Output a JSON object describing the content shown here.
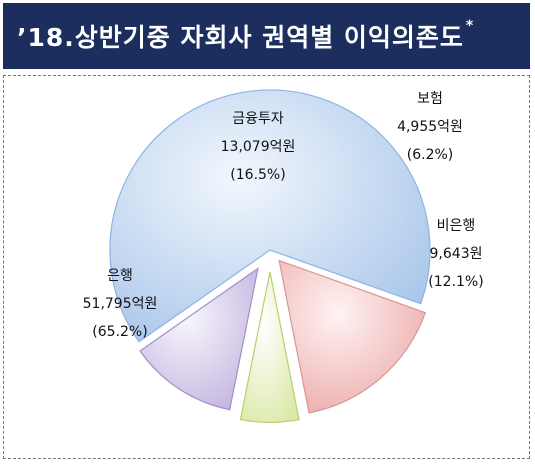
{
  "title": "’18.상반기중 자회사 권역별 이익의존도",
  "title_mark": "*",
  "chart_data": {
    "type": "pie",
    "unit": "억원",
    "slices": [
      {
        "name": "은행",
        "value": 51795,
        "value_text": "51,795억원",
        "pct_text": "(65.2%)",
        "color": "#c6d9f1",
        "edge": "#8eb4e3"
      },
      {
        "name": "금융투자",
        "value": 13079,
        "value_text": "13,079억원",
        "pct_text": "(16.5%)",
        "color": "#f4c6c6",
        "edge": "#d99694"
      },
      {
        "name": "보험",
        "value": 4955,
        "value_text": "4,955억원",
        "pct_text": "(6.2%)",
        "color": "#ebf3c8",
        "edge": "#b9cf6f"
      },
      {
        "name": "비은행",
        "value": 9643,
        "value_text": "9,643원",
        "pct_text": "(12.1%)",
        "color": "#e0d8ef",
        "edge": "#9f8fc9"
      }
    ]
  }
}
